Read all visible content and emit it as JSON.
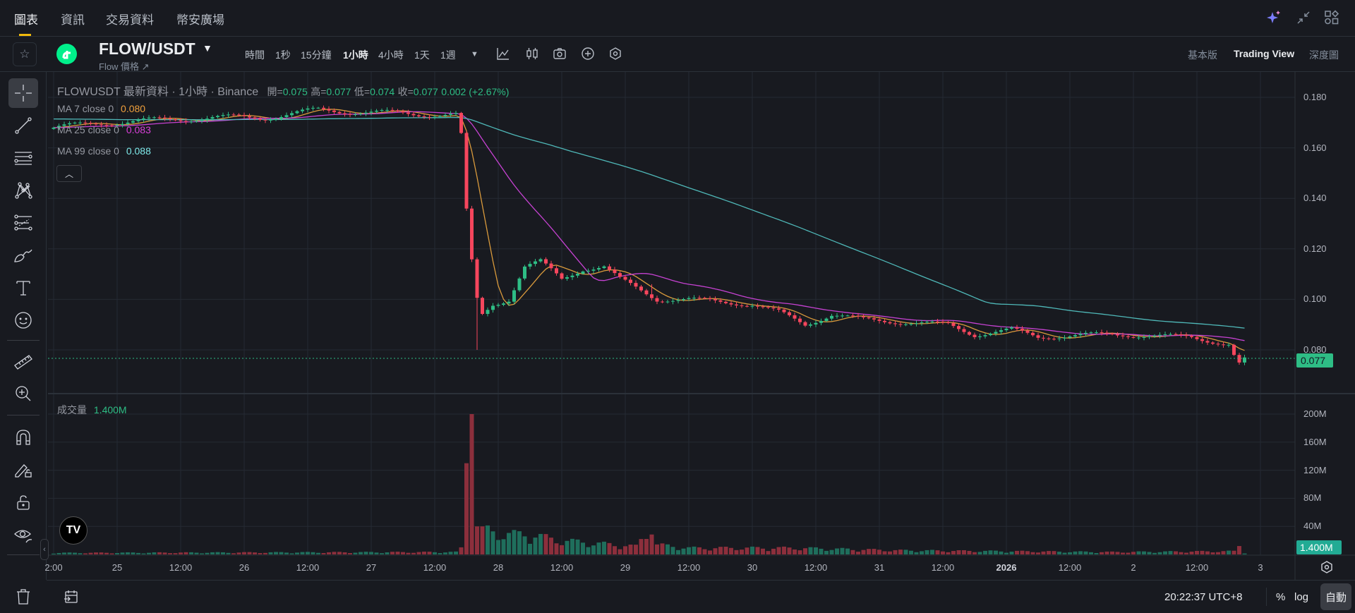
{
  "nav": {
    "tabs": [
      "圖表",
      "資訊",
      "交易資料",
      "幣安廣場"
    ],
    "active": 0
  },
  "header": {
    "symbol": "FLOW/USDT",
    "subtitle": "Flow 價格 ↗",
    "intervals": [
      "時間",
      "1秒",
      "15分鐘",
      "1小時",
      "4小時",
      "1天",
      "1週"
    ],
    "active_interval": "1小時",
    "views": [
      "基本版",
      "Trading View",
      "深度圖"
    ],
    "active_view": "Trading View"
  },
  "legend": {
    "title": "FLOWUSDT 最新資料 · 1小時 · Binance",
    "open_label": "開=",
    "open": "0.075",
    "high_label": "高=",
    "high": "0.077",
    "low_label": "低=",
    "low": "0.074",
    "close_label": "收=",
    "close": "0.077",
    "change": "0.002 (+2.67%)"
  },
  "ma": [
    {
      "label": "MA 7 close 0",
      "value": "0.080",
      "color": "#f0a03c"
    },
    {
      "label": "MA 25 close 0",
      "value": "0.083",
      "color": "#d940d9"
    },
    {
      "label": "MA 99 close 0",
      "value": "0.088",
      "color": "#7ee8e8"
    }
  ],
  "volume": {
    "label": "成交量",
    "value": "1.400M"
  },
  "price_axis": [
    "0.180",
    "0.160",
    "0.140",
    "0.120",
    "0.100",
    "0.080"
  ],
  "current_price": "0.077",
  "volume_axis": [
    "200M",
    "160M",
    "120M",
    "80M",
    "40M"
  ],
  "current_volume": "1.400M",
  "time_axis": [
    "2:00",
    "25",
    "12:00",
    "26",
    "12:00",
    "27",
    "12:00",
    "28",
    "12:00",
    "29",
    "12:00",
    "30",
    "12:00",
    "31",
    "12:00",
    "2026",
    "12:00",
    "2",
    "12:00",
    "3"
  ],
  "footer": {
    "clock": "20:22:37 UTC+8",
    "percent": "%",
    "log": "log",
    "auto": "自動"
  },
  "colors": {
    "up": "#2ebd85",
    "down": "#f6465d",
    "vol_up": "#1f6e5c",
    "vol_down": "#8c2f3c",
    "ma7": "#d99a3c",
    "ma25": "#c642d2",
    "ma99": "#4fb8b8"
  },
  "chart_data": {
    "type": "candlestick",
    "interval": "1h",
    "close_keypoints": [
      [
        0,
        0.168
      ],
      [
        10,
        0.17
      ],
      [
        20,
        0.171
      ],
      [
        30,
        0.172
      ],
      [
        40,
        0.172
      ],
      [
        50,
        0.175
      ],
      [
        60,
        0.174
      ],
      [
        76,
        0.173
      ],
      [
        77,
        0.165
      ],
      [
        78,
        0.135
      ],
      [
        79,
        0.115
      ],
      [
        80,
        0.1
      ],
      [
        81,
        0.094
      ],
      [
        83,
        0.098
      ],
      [
        86,
        0.1
      ],
      [
        89,
        0.113
      ],
      [
        92,
        0.115
      ],
      [
        96,
        0.108
      ],
      [
        100,
        0.112
      ],
      [
        104,
        0.113
      ],
      [
        107,
        0.108
      ],
      [
        114,
        0.1
      ],
      [
        120,
        0.1
      ],
      [
        126,
        0.099
      ],
      [
        132,
        0.098
      ],
      [
        137,
        0.095
      ],
      [
        142,
        0.09
      ],
      [
        147,
        0.094
      ],
      [
        153,
        0.092
      ],
      [
        160,
        0.091
      ],
      [
        169,
        0.09
      ],
      [
        174,
        0.086
      ],
      [
        181,
        0.088
      ],
      [
        186,
        0.085
      ],
      [
        195,
        0.086
      ],
      [
        202,
        0.086
      ],
      [
        215,
        0.085
      ],
      [
        220,
        0.083
      ],
      [
        222,
        0.082
      ],
      [
        223,
        0.078
      ],
      [
        224,
        0.075
      ],
      [
        225,
        0.077
      ]
    ],
    "volume_keypoints_M": [
      [
        0,
        2
      ],
      [
        76,
        3
      ],
      [
        77,
        8
      ],
      [
        78,
        130
      ],
      [
        79,
        200
      ],
      [
        80,
        40
      ],
      [
        81,
        40
      ],
      [
        82,
        30
      ],
      [
        85,
        25
      ],
      [
        90,
        25
      ],
      [
        95,
        18
      ],
      [
        100,
        15
      ],
      [
        110,
        10
      ],
      [
        113,
        35
      ],
      [
        114,
        12
      ],
      [
        120,
        8
      ],
      [
        140,
        8
      ],
      [
        160,
        5
      ],
      [
        180,
        4
      ],
      [
        200,
        3
      ],
      [
        223,
        4
      ],
      [
        224,
        12
      ],
      [
        225,
        1.4
      ]
    ],
    "price_range": [
      0.06,
      0.185
    ],
    "volume_range": [
      0,
      220
    ]
  }
}
